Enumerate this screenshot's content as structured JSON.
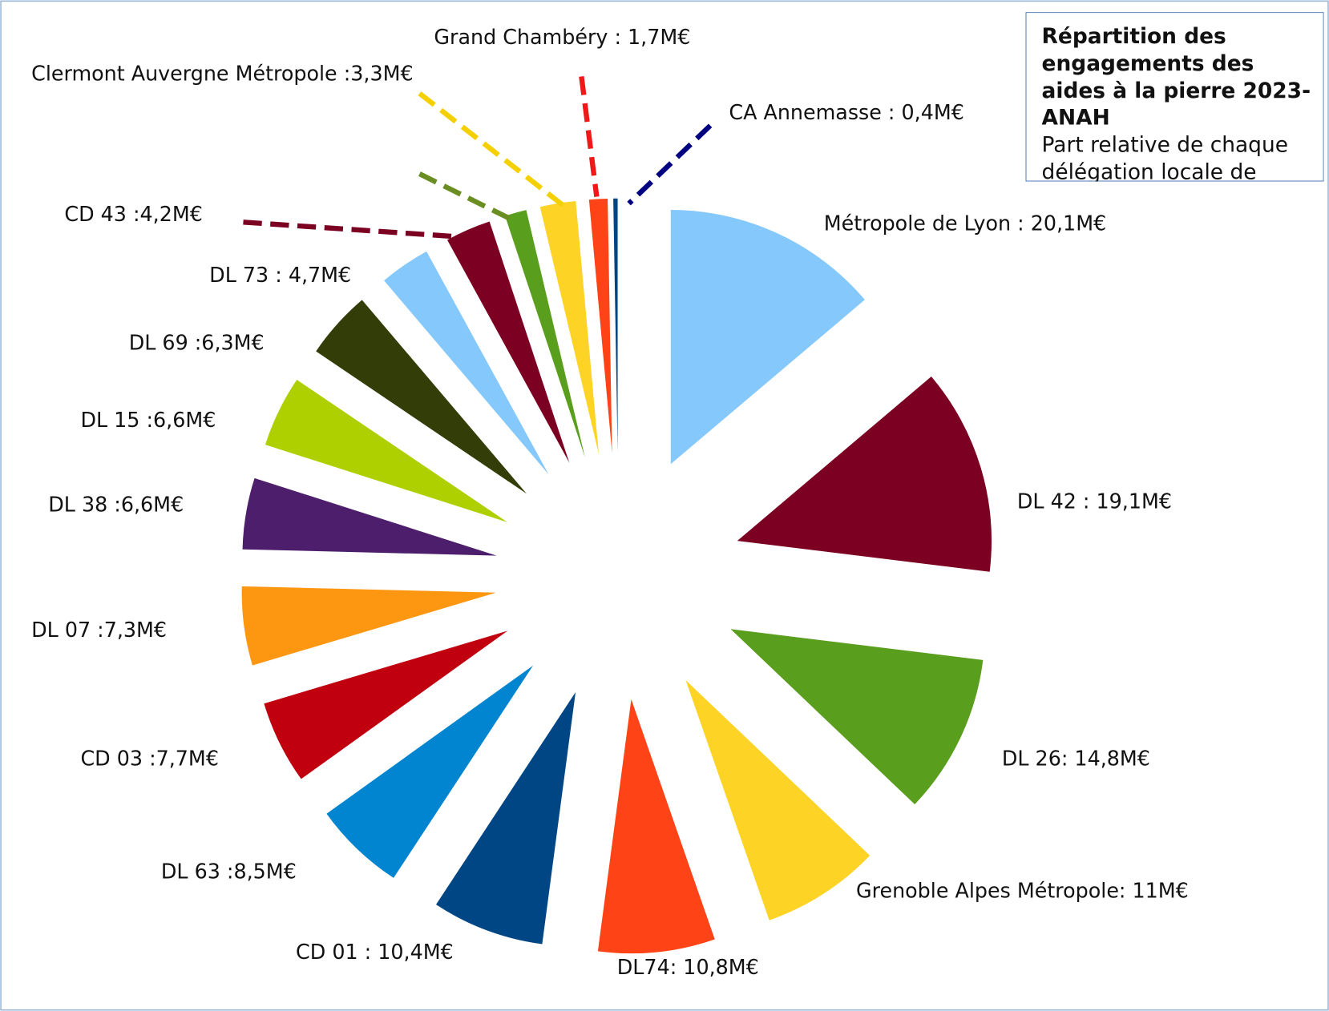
{
  "chart_data": {
    "type": "pie",
    "title": "Répartition des engagements des aides à la pierre 2023- ANAH",
    "subtitle": "Part relative de chaque délégation locale de l’ANAH",
    "values": [
      20.1,
      19.1,
      14.8,
      11,
      10.8,
      10.4,
      8.5,
      7.7,
      7.3,
      6.6,
      6.6,
      6.3,
      4.7,
      4.2,
      2.0,
      3.3,
      1.7,
      0.4
    ],
    "value_labels": [
      "Métropole de Lyon : 20,1M€",
      "DL 42 : 19,1M€",
      "DL 26: 14,8M€",
      "Grenoble Alpes Métropole: 11M€",
      "DL74: 10,8M€",
      "CD 01 : 10,4M€",
      "DL 63 :8,5M€",
      "CD 03 :7,7M€",
      "DL 07 :7,3M€",
      "DL 38 :6,6M€",
      "DL 15 :6,6M€",
      "DL 69 :6,3M€",
      "DL 73 : 4,7M€",
      "CD 43 :4,2M€",
      null,
      "Clermont Auvergne Métropole :3,3M€",
      "Grand Chambéry : 1,7M€",
      "CA Annemasse : 0,4M€"
    ],
    "colors": [
      "#85c8fb",
      "#7b0022",
      "#5a9e1e",
      "#fdd425",
      "#fe4416",
      "#004584",
      "#0285d1",
      "#c1000f",
      "#fd9610",
      "#4c1e6c",
      "#aed000",
      "#333d07",
      "#85c8fb",
      "#7b0022",
      "#5a9e1e",
      "#fdd425",
      "#fe4416",
      "#004584"
    ]
  }
}
